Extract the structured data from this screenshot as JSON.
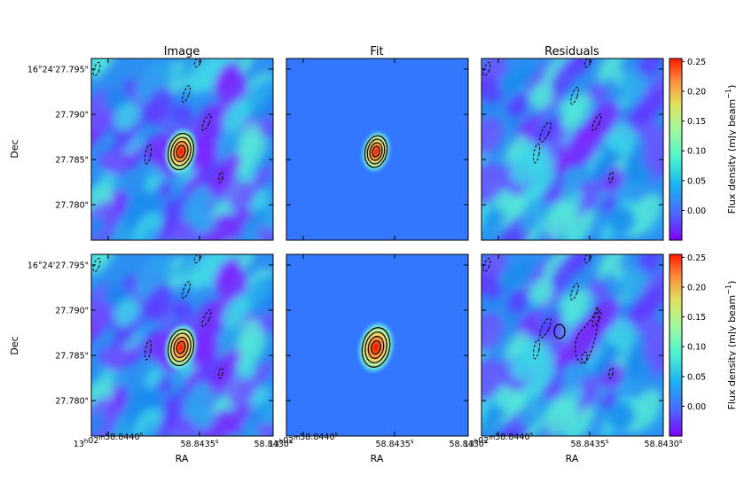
{
  "chart_data": {
    "type": "heatmap",
    "column_titles": [
      "Image",
      "Fit",
      "Residuals"
    ],
    "ylabel": "Dec",
    "xlabel": "RA",
    "dec_ticks": [
      "16°24'27.795\"",
      "27.790\"",
      "27.785\"",
      "27.780\""
    ],
    "dec_tick_values": [
      27.795,
      27.79,
      27.785,
      27.78
    ],
    "ra_ticks": [
      {
        "lead": "13",
        "h": "h",
        "mid": "02",
        "m": "m",
        "tail": "58.8440",
        "s": "s"
      },
      {
        "lead": "",
        "h": "",
        "mid": "",
        "m": "",
        "tail": "58.8435",
        "s": "s"
      },
      {
        "lead": "",
        "h": "",
        "mid": "",
        "m": "",
        "tail": "58.8430",
        "s": "s"
      }
    ],
    "colorbar": {
      "label": "Flux density (mJy beam",
      "label_sup": "−1",
      "label_close": ")",
      "ticks": [
        "0.25",
        "0.20",
        "0.15",
        "0.10",
        "0.05",
        "0.00"
      ],
      "tick_values": [
        0.25,
        0.2,
        0.15,
        0.1,
        0.05,
        0.0
      ],
      "range": [
        -0.05,
        0.255
      ],
      "colormap": "rainbow"
    },
    "rows": [
      {
        "panels": [
          "Image",
          "Fit",
          "Residuals"
        ],
        "fit_model": "compact"
      },
      {
        "panels": [
          "Image",
          "Fit",
          "Residuals"
        ],
        "fit_model": "extended"
      }
    ],
    "contour_levels": {
      "positive": "solid black",
      "negative": "dashed black"
    },
    "fit_background_color": "#3377ff"
  }
}
